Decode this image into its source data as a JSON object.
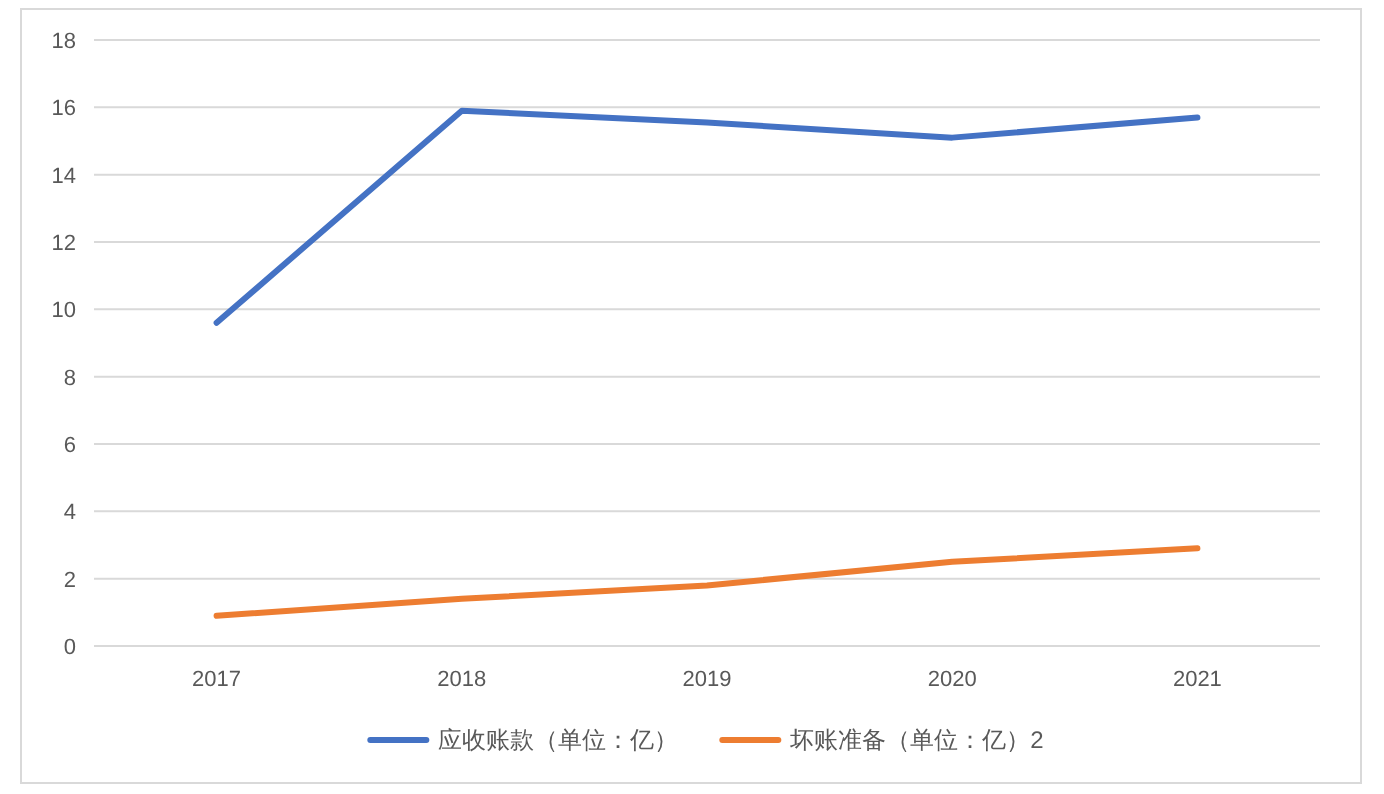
{
  "chart_data": {
    "type": "line",
    "categories": [
      "2017",
      "2018",
      "2019",
      "2020",
      "2021"
    ],
    "series": [
      {
        "name": "应收账款（单位：亿）",
        "color": "#4472c4",
        "values": [
          9.6,
          15.9,
          15.55,
          15.1,
          15.7
        ]
      },
      {
        "name": "坏账准备（单位：亿）2",
        "color": "#ed7d31",
        "values": [
          0.9,
          1.4,
          1.8,
          2.5,
          2.9
        ]
      }
    ],
    "ylim": [
      0,
      18
    ],
    "yticks": [
      0,
      2,
      4,
      6,
      8,
      10,
      12,
      14,
      16,
      18
    ],
    "grid": "y",
    "legend": "bottom",
    "marker": "none",
    "line_style": "solid"
  }
}
